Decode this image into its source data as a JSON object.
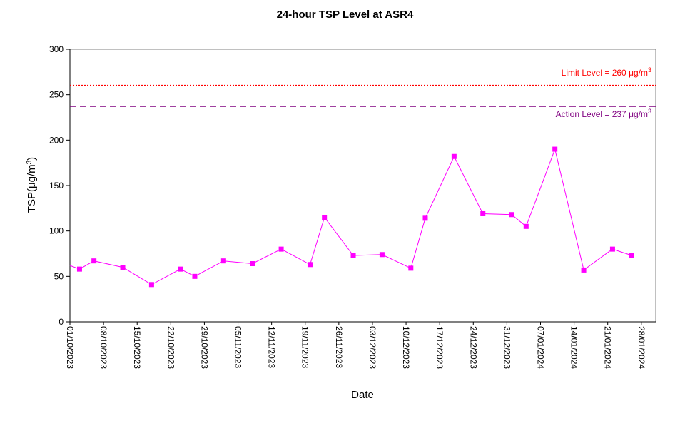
{
  "chart_data": {
    "type": "line",
    "title": "24-hour TSP Level at ASR4",
    "xlabel": "Date",
    "ylabel_main": "TSP(",
    "ylabel_unit": "μg/m",
    "ylabel_sup": "3",
    "ylabel_close": ")",
    "ylim": [
      0,
      300
    ],
    "yticks": [
      0,
      50,
      100,
      150,
      200,
      250,
      300
    ],
    "xlim": [
      "2023-10-01",
      "2024-01-31"
    ],
    "xticks": [
      "2023-10-01",
      "2023-10-08",
      "2023-10-15",
      "2023-10-22",
      "2023-10-29",
      "2023-11-05",
      "2023-11-12",
      "2023-11-19",
      "2023-11-26",
      "2023-12-03",
      "2023-12-10",
      "2023-12-17",
      "2023-12-24",
      "2023-12-31",
      "2024-01-07",
      "2024-01-14",
      "2024-01-21",
      "2024-01-28"
    ],
    "xtick_labels": [
      "01/10/2023",
      "08/10/2023",
      "15/10/2023",
      "22/10/2023",
      "29/10/2023",
      "05/11/2023",
      "12/11/2023",
      "19/11/2023",
      "26/11/2023",
      "03/12/2023",
      "10/12/2023",
      "17/12/2023",
      "24/12/2023",
      "31/12/2023",
      "07/01/2024",
      "14/01/2024",
      "21/01/2024",
      "28/01/2024"
    ],
    "grid": false,
    "series": [
      {
        "color": "#ff00ff",
        "points": [
          {
            "x": "2023-10-03",
            "y": 58
          },
          {
            "x": "2023-10-06",
            "y": 67
          },
          {
            "x": "2023-10-12",
            "y": 60
          },
          {
            "x": "2023-10-18",
            "y": 41
          },
          {
            "x": "2023-10-24",
            "y": 58
          },
          {
            "x": "2023-10-27",
            "y": 50
          },
          {
            "x": "2023-11-02",
            "y": 67
          },
          {
            "x": "2023-11-08",
            "y": 64
          },
          {
            "x": "2023-11-14",
            "y": 80
          },
          {
            "x": "2023-11-20",
            "y": 63
          },
          {
            "x": "2023-11-23",
            "y": 115
          },
          {
            "x": "2023-11-29",
            "y": 73
          },
          {
            "x": "2023-12-05",
            "y": 74
          },
          {
            "x": "2023-12-11",
            "y": 59
          },
          {
            "x": "2023-12-14",
            "y": 114
          },
          {
            "x": "2023-12-20",
            "y": 182
          },
          {
            "x": "2023-12-26",
            "y": 119
          },
          {
            "x": "2024-01-01",
            "y": 118
          },
          {
            "x": "2024-01-04",
            "y": 105
          },
          {
            "x": "2024-01-10",
            "y": 190
          },
          {
            "x": "2024-01-16",
            "y": 57
          },
          {
            "x": "2024-01-22",
            "y": 80
          },
          {
            "x": "2024-01-26",
            "y": 73
          }
        ],
        "start_value": 62
      }
    ],
    "reference_lines": [
      {
        "value": 260,
        "color": "#ff0000",
        "style": "dotted",
        "label": "Limit Level  = 260 ",
        "unit": "μg/m",
        "sup": "3",
        "label_position": "above-right"
      },
      {
        "value": 237,
        "color": "#800080",
        "style": "dashed",
        "label": "Action Level  = 237 ",
        "unit": "μg/m",
        "sup": "3",
        "label_position": "below-right"
      }
    ]
  }
}
